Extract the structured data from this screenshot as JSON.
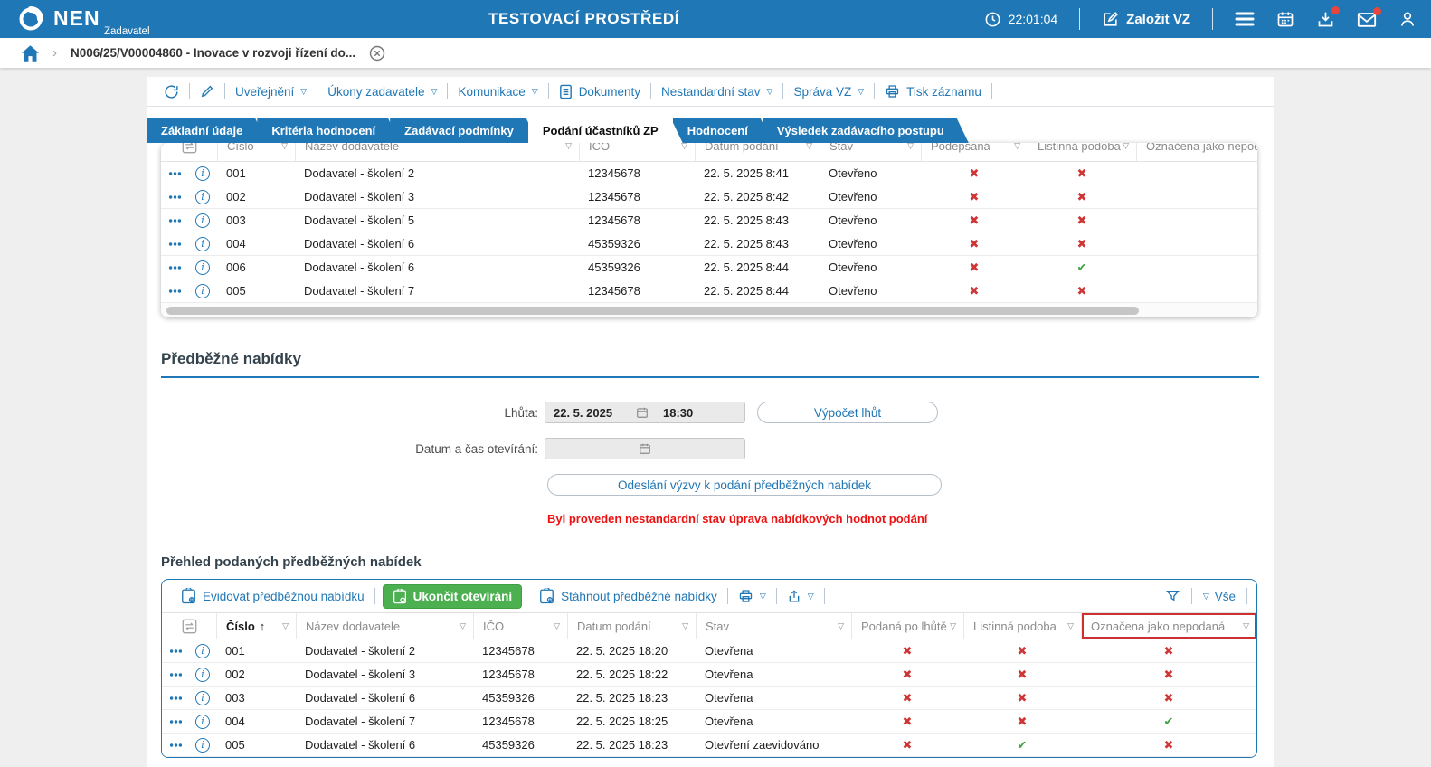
{
  "header": {
    "logo": "NEN",
    "logo_subtitle": "Zadavatel",
    "environment_title": "TESTOVACÍ PROSTŘEDÍ",
    "time": "22:01:04",
    "create_vz": "Založit VZ"
  },
  "breadcrumb": {
    "item": "N006/25/V00004860 - Inovace v rozvoji řízení do..."
  },
  "toolbar": {
    "uverejneni": "Uveřejnění",
    "ukony": "Úkony zadavatele",
    "komunikace": "Komunikace",
    "dokumenty": "Dokumenty",
    "nestandardni": "Nestandardní stav",
    "sprava": "Správa VZ",
    "tisk": "Tisk záznamu"
  },
  "tabs": {
    "items": [
      {
        "label": "Základní údaje",
        "active": false
      },
      {
        "label": "Kritéria hodnocení",
        "active": false
      },
      {
        "label": "Zadávací podmínky",
        "active": false
      },
      {
        "label": "Podání účastníků ZP",
        "active": true
      },
      {
        "label": "Hodnocení",
        "active": false
      },
      {
        "label": "Výsledek zadávacího postupu",
        "active": false
      }
    ]
  },
  "participants_table": {
    "columns": [
      {
        "label": "Číslo"
      },
      {
        "label": "Název dodavatele"
      },
      {
        "label": "IČO"
      },
      {
        "label": "Datum podání"
      },
      {
        "label": "Stav"
      },
      {
        "label": "Podepsaná"
      },
      {
        "label": "Listinná podoba"
      },
      {
        "label": "Označena jako nepodaná"
      }
    ],
    "rows": [
      {
        "cislo": "001",
        "nazev": "Dodavatel - školení 2",
        "ico": "12345678",
        "datum": "22. 5. 2025 8:41",
        "stav": "Otevřeno",
        "marks": [
          false,
          false
        ]
      },
      {
        "cislo": "002",
        "nazev": "Dodavatel - školení 3",
        "ico": "12345678",
        "datum": "22. 5. 2025 8:42",
        "stav": "Otevřeno",
        "marks": [
          false,
          false
        ]
      },
      {
        "cislo": "003",
        "nazev": "Dodavatel - školení 5",
        "ico": "12345678",
        "datum": "22. 5. 2025 8:43",
        "stav": "Otevřeno",
        "marks": [
          false,
          false
        ]
      },
      {
        "cislo": "004",
        "nazev": "Dodavatel - školení 6",
        "ico": "45359326",
        "datum": "22. 5. 2025 8:43",
        "stav": "Otevřeno",
        "marks": [
          false,
          false
        ]
      },
      {
        "cislo": "006",
        "nazev": "Dodavatel - školení 6",
        "ico": "45359326",
        "datum": "22. 5. 2025 8:44",
        "stav": "Otevřeno",
        "marks": [
          false,
          true
        ]
      },
      {
        "cislo": "005",
        "nazev": "Dodavatel - školení 7",
        "ico": "12345678",
        "datum": "22. 5. 2025 8:44",
        "stav": "Otevřeno",
        "marks": [
          false,
          false
        ]
      }
    ]
  },
  "preliminary": {
    "title": "Předběžné nabídky",
    "deadline_label": "Lhůta:",
    "deadline_date": "22. 5. 2025",
    "deadline_time": "18:30",
    "calc_button": "Výpočet lhůt",
    "opening_label": "Datum a čas otevírání:",
    "opening_value": "",
    "send_button": "Odeslání výzvy k podání předběžných nabídek",
    "warning": "Byl proveden nestandardní stav úprava nabídkových hodnot podání"
  },
  "submitted": {
    "title": "Přehled podaných předběžných nabídek",
    "toolbar": {
      "evidovat": "Evidovat předběžnou nabídku",
      "ukoncit": "Ukončit otevírání",
      "stahnout": "Stáhnout předběžné nabídky",
      "vse": "Vše"
    },
    "table": {
      "columns": [
        {
          "label": "Číslo",
          "sorted": true
        },
        {
          "label": "Název dodavatele"
        },
        {
          "label": "IČO"
        },
        {
          "label": "Datum podání"
        },
        {
          "label": "Stav"
        },
        {
          "label": "Podaná po lhůtě"
        },
        {
          "label": "Listinná podoba"
        },
        {
          "label": "Označena jako nepodaná",
          "highlight": true
        }
      ],
      "rows": [
        {
          "cislo": "001",
          "nazev": "Dodavatel - školení 2",
          "ico": "12345678",
          "datum": "22. 5. 2025 18:20",
          "stav": "Otevřena",
          "marks": [
            false,
            false,
            false
          ]
        },
        {
          "cislo": "002",
          "nazev": "Dodavatel - školení 3",
          "ico": "12345678",
          "datum": "22. 5. 2025 18:22",
          "stav": "Otevřena",
          "marks": [
            false,
            false,
            false
          ]
        },
        {
          "cislo": "003",
          "nazev": "Dodavatel - školení 6",
          "ico": "45359326",
          "datum": "22. 5. 2025 18:23",
          "stav": "Otevřena",
          "marks": [
            false,
            false,
            false
          ]
        },
        {
          "cislo": "004",
          "nazev": "Dodavatel - školení 7",
          "ico": "12345678",
          "datum": "22. 5. 2025 18:25",
          "stav": "Otevřena",
          "marks": [
            false,
            false,
            true
          ]
        },
        {
          "cislo": "005",
          "nazev": "Dodavatel - školení 6",
          "ico": "45359326",
          "datum": "22. 5. 2025 18:23",
          "stav": "Otevření zaevidováno",
          "marks": [
            false,
            true,
            false
          ]
        }
      ]
    }
  },
  "colors": {
    "accent_blue": "#2077b5",
    "green_button": "#4caf50",
    "error_red": "#ee1111",
    "cross_red": "#d03535",
    "check_green": "#3fa33f"
  }
}
